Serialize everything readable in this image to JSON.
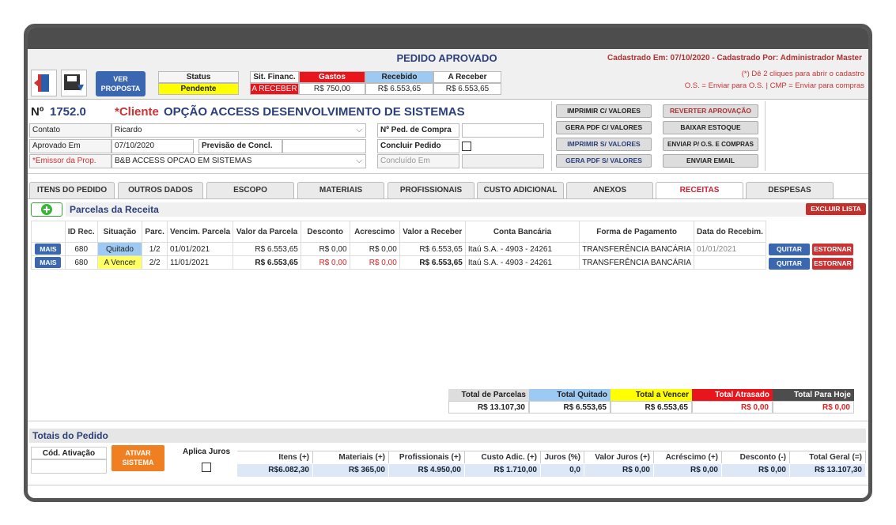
{
  "header": {
    "title": "PEDIDO APROVADO",
    "registered": "Cadastrado Em: 07/10/2020 - Cadastrado Por: Administrador Master",
    "hint1": "(*) Dê 2 cliques para abrir o cadastro",
    "hint2": "O.S. = Enviar para O.S. | CMP = Enviar para compras",
    "ver_proposta": "VER PROPOSTA",
    "status_label": "Status",
    "status_value": "Pendente",
    "sit_financ_label": "Sit. Financ.",
    "sit_financ_value": "A RECEBER",
    "gastos_label": "Gastos",
    "gastos_value": "R$ 750,00",
    "recebido_label": "Recebido",
    "recebido_value": "R$ 6.553,65",
    "a_receber_label": "A Receber",
    "a_receber_value": "R$ 6.553,65"
  },
  "form": {
    "numero_label": "Nº",
    "numero_value": "1752.0",
    "cliente_label": "*Cliente",
    "cliente_value": "OPÇÃO ACCESS DESENVOLVIMENTO DE SISTEMAS",
    "contato_label": "Contato",
    "contato_value": "Ricardo",
    "aprovado_label": "Aprovado Em",
    "aprovado_value": "07/10/2020",
    "previsao_label": "Previsão de Concl.",
    "previsao_value": "",
    "emissor_label": "*Emissor da Prop.",
    "emissor_value": "B&B ACCESS OPCAO EM SISTEMAS",
    "ped_compra_label": "Nº Ped. de Compra",
    "ped_compra_value": "",
    "concluir_label": "Concluir Pedido",
    "concluido_placeholder": "Concluído Em"
  },
  "actions": {
    "imprimir_c": "IMPRIMIR C/ VALORES",
    "gera_pdf_c": "GERA PDF C/ VALORES",
    "imprimir_s": "IMPRIMIR S/ VALORES",
    "gera_pdf_s": "GERA PDF S/ VALORES",
    "reverter": "REVERTER APROVAÇÃO",
    "baixar": "BAIXAR ESTOQUE",
    "enviar_os": "ENVIAR P/ O.S. E COMPRAS",
    "enviar_email": "ENVIAR EMAIL"
  },
  "tabs": [
    "ITENS DO PEDIDO",
    "OUTROS DADOS",
    "ESCOPO",
    "MATERIAIS",
    "PROFISSIONAIS",
    "CUSTO ADICIONAL",
    "ANEXOS",
    "RECEITAS",
    "DESPESAS"
  ],
  "receitas": {
    "section_title": "Parcelas da Receita",
    "excluir": "EXCLUIR LISTA",
    "columns": [
      "ID Rec.",
      "Situação",
      "Parc.",
      "Vencim. Parcela",
      "Valor da Parcela",
      "Desconto",
      "Acrescimo",
      "Valor a Receber",
      "Conta Bancária",
      "Forma de Pagamento",
      "Data do Recebim."
    ],
    "mais": "MAIS",
    "quitar": "QUITAR",
    "estornar": "ESTORNAR",
    "rows": [
      {
        "id": "680",
        "situacao": "Quitado",
        "parc": "1/2",
        "venc": "01/01/2021",
        "valor": "R$ 6.553,65",
        "desconto": "R$ 0,00",
        "acrescimo": "R$ 0,00",
        "receber": "R$ 6.553,65",
        "conta": "Itaú S.A. - 4903 - 24261",
        "forma": "TRANSFERÊNCIA BANCÁRIA",
        "data": "01/01/2021"
      },
      {
        "id": "680",
        "situacao": "A Vencer",
        "parc": "2/2",
        "venc": "11/01/2021",
        "valor": "R$ 6.553,65",
        "desconto": "R$ 0,00",
        "acrescimo": "R$ 0,00",
        "receber": "R$ 6.553,65",
        "conta": "Itaú S.A. - 4903 - 24261",
        "forma": "TRANSFERÊNCIA BANCÁRIA",
        "data": ""
      }
    ],
    "summary": {
      "total_parcelas_label": "Total de Parcelas",
      "total_parcelas": "R$ 13.107,30",
      "total_quitado_label": "Total Quitado",
      "total_quitado": "R$ 6.553,65",
      "total_vencer_label": "Total a Vencer",
      "total_vencer": "R$ 6.553,65",
      "total_atrasado_label": "Total Atrasado",
      "total_atrasado": "R$ 0,00",
      "total_hoje_label": "Total Para Hoje",
      "total_hoje": "R$ 0,00"
    }
  },
  "totais": {
    "title": "Totais do Pedido",
    "cod_ativacao_label": "Cód. Ativação",
    "ativar": "ATIVAR SISTEMA",
    "aplica_juros_label": "Aplica Juros",
    "itens_label": "Itens (+)",
    "itens": "R$6.082,30",
    "materiais_label": "Materiais (+)",
    "materiais": "R$ 365,00",
    "profissionais_label": "Profissionais (+)",
    "profissionais": "R$ 4.950,00",
    "custo_label": "Custo Adic. (+)",
    "custo": "R$ 1.710,00",
    "juros_label": "Juros (%)",
    "juros": "0,0",
    "valor_juros_label": "Valor Juros (+)",
    "valor_juros": "R$ 0,00",
    "acrescimo_label": "Acréscimo (+)",
    "acrescimo": "R$ 0,00",
    "desconto_label": "Desconto (-)",
    "desconto": "R$ 0,00",
    "total_label": "Total Geral (=)",
    "total": "R$ 13.107,30"
  }
}
